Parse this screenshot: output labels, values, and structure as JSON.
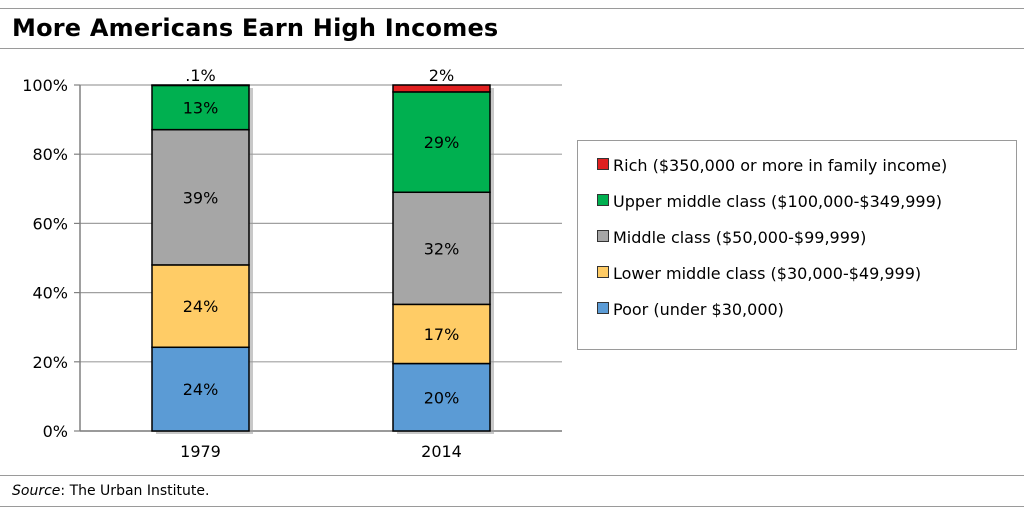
{
  "title": "More Americans Earn High Incomes",
  "source": {
    "label": "Source",
    "text": ": The Urban Institute."
  },
  "chart_data": {
    "type": "bar",
    "stacked": true,
    "categories": [
      "1979",
      "2014"
    ],
    "ylim": [
      0,
      100
    ],
    "yticks": [
      "0%",
      "20%",
      "40%",
      "60%",
      "80%",
      "100%"
    ],
    "ytick_values": [
      0,
      20,
      40,
      60,
      80,
      100
    ],
    "legend_position": "right",
    "series": [
      {
        "name": "Poor (under $30,000)",
        "color": "#5b9bd5",
        "values": [
          24.2,
          19.5
        ],
        "labels": [
          "24%",
          "20%"
        ]
      },
      {
        "name": "Lower middle class ($30,000-$49,999)",
        "color": "#ffcc66",
        "values": [
          23.8,
          17.1
        ],
        "labels": [
          "24%",
          "17%"
        ]
      },
      {
        "name": "Middle class ($50,000-$99,999)",
        "color": "#a6a6a6",
        "values": [
          39.1,
          32.4
        ],
        "labels": [
          "39%",
          "32%"
        ]
      },
      {
        "name": "Upper middle class ($100,000-$349,999)",
        "color": "#00b050",
        "values": [
          12.8,
          29.0
        ],
        "labels": [
          "13%",
          "29%"
        ]
      },
      {
        "name": "Rich ($350,000 or more in family income)",
        "color": "#e02020",
        "values": [
          0.1,
          2.0
        ],
        "labels": [
          ".1%",
          "2%"
        ]
      }
    ]
  }
}
